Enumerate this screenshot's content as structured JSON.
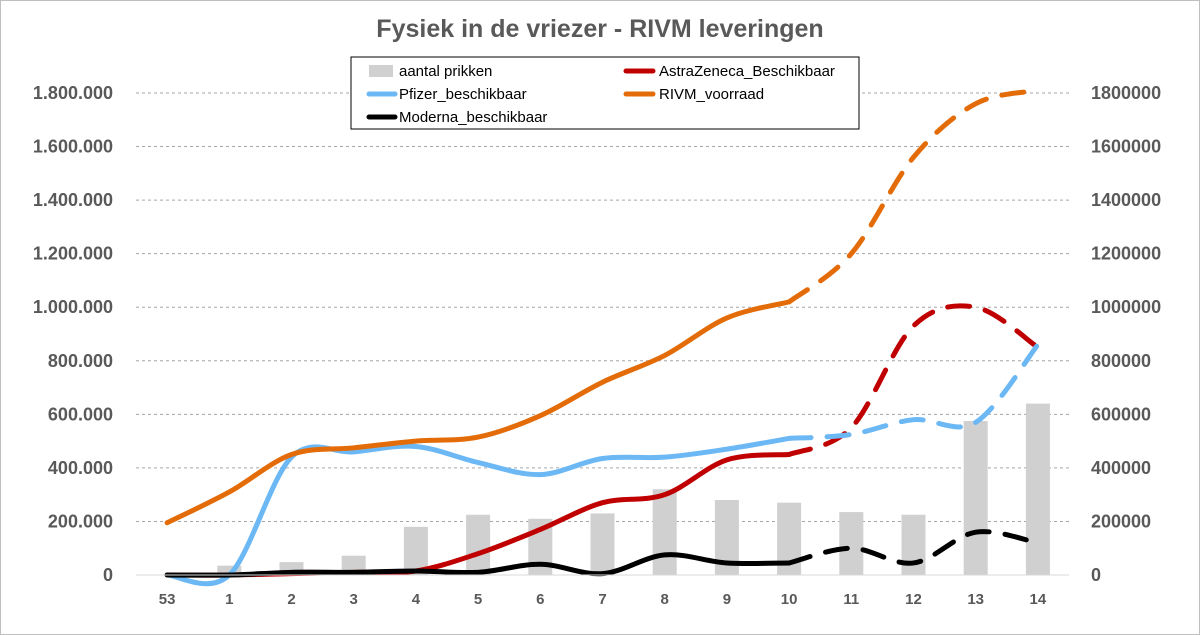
{
  "chart_data": {
    "type": "bar+line",
    "title": "Fysiek in de vriezer - RIVM leveringen",
    "categories": [
      "53",
      "1",
      "2",
      "3",
      "4",
      "5",
      "6",
      "7",
      "8",
      "9",
      "10",
      "11",
      "12",
      "13",
      "14"
    ],
    "y_left": {
      "min": 0,
      "max": 1800000,
      "step": 200000,
      "tick_labels": [
        "0",
        "200.000",
        "400.000",
        "600.000",
        "800.000",
        "1.000.000",
        "1.200.000",
        "1.400.000",
        "1.600.000",
        "1.800.000"
      ]
    },
    "y_right": {
      "min": 0,
      "max": 1800000,
      "step": 200000,
      "tick_labels": [
        "0",
        "200000",
        "400000",
        "600000",
        "800000",
        "1000000",
        "1200000",
        "1400000",
        "1600000",
        "1800000"
      ]
    },
    "grid": "horizontal-dashed",
    "legend_position": "top-center",
    "bars": {
      "name": "aantal prikken",
      "color": "#d0d0d0",
      "values": [
        2000,
        35000,
        48000,
        72000,
        180000,
        225000,
        210000,
        230000,
        320000,
        280000,
        270000,
        235000,
        225000,
        575000,
        640000
      ]
    },
    "series": [
      {
        "name": "AstraZeneca_Beschikbaar",
        "color": "#c00000",
        "actual_through": 10,
        "values": [
          0,
          0,
          5000,
          10000,
          15000,
          80000,
          170000,
          270000,
          300000,
          430000,
          450000,
          550000,
          930000,
          1000000,
          850000
        ]
      },
      {
        "name": "Pfizer_beschikbaar",
        "color": "#6cb8f5",
        "actual_through": 10,
        "values": [
          0,
          0,
          440000,
          460000,
          480000,
          420000,
          375000,
          435000,
          440000,
          470000,
          510000,
          525000,
          580000,
          570000,
          860000
        ]
      },
      {
        "name": "RIVM_voorraad",
        "color": "#e36c09",
        "actual_through": 10,
        "values": [
          195000,
          310000,
          450000,
          475000,
          500000,
          515000,
          595000,
          720000,
          820000,
          960000,
          1020000,
          1200000,
          1560000,
          1760000,
          1810000
        ]
      },
      {
        "name": "Moderna_beschikbaar",
        "color": "#000000",
        "actual_through": 10,
        "values": [
          0,
          0,
          10000,
          10000,
          15000,
          10000,
          40000,
          5000,
          75000,
          45000,
          45000,
          100000,
          45000,
          160000,
          120000
        ]
      }
    ]
  }
}
